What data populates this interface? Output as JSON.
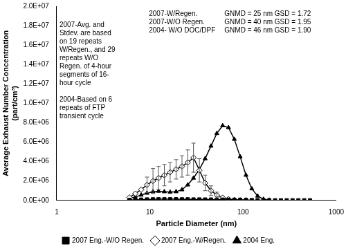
{
  "chart_data": {
    "type": "line",
    "x_label": "Particle Diameter (nm)",
    "y_label": [
      "Average Exhaust Number Concentration",
      "(part/cm³)"
    ],
    "log": "x",
    "grid": false,
    "legend": "bottom",
    "xlim": [
      1,
      1000
    ],
    "xticks": [
      1,
      10,
      100,
      1000
    ],
    "ylim": [
      0,
      20000000
    ],
    "yticks": [
      {
        "value": 0,
        "label": "0.0E+00"
      },
      {
        "value": 2000000,
        "label": "2.0E+06"
      },
      {
        "value": 4000000,
        "label": "4.0E+06"
      },
      {
        "value": 6000000,
        "label": "6.0E+06"
      },
      {
        "value": 8000000,
        "label": "8.0E+06"
      },
      {
        "value": 10000000,
        "label": "1.0E+07"
      },
      {
        "value": 12000000,
        "label": "1.2E+07"
      },
      {
        "value": 14000000,
        "label": "1.4E+07"
      },
      {
        "value": 16000000,
        "label": "1.6E+07"
      },
      {
        "value": 18000000,
        "label": "1.8E+07"
      },
      {
        "value": 20000000,
        "label": "2.0E+07"
      }
    ],
    "x": [
      6.04,
      6.98,
      8.06,
      9.31,
      10.8,
      12.4,
      14.3,
      16.5,
      19.1,
      22.1,
      25.5,
      29.4,
      34.0,
      39.2,
      45.3,
      52.3,
      60.4,
      69.8,
      80.6,
      93.1,
      107.5,
      124.1,
      143.3,
      165.5,
      191.1,
      220.7,
      254.8,
      294.3,
      339.8,
      392.4,
      453.2,
      523.3
    ],
    "series": [
      {
        "name": "2007 Eng.-W/O Regen.",
        "color": "#000000",
        "marker": "square",
        "values": [
          40000,
          60000,
          80000,
          100000,
          110000,
          120000,
          120000,
          120000,
          120000,
          110000,
          110000,
          100000,
          100000,
          90000,
          90000,
          80000,
          80000,
          70000,
          60000,
          50000,
          40000,
          30000,
          20000,
          20000,
          10000,
          10000,
          10000,
          10000,
          10000,
          10000,
          10000,
          10000
        ]
      },
      {
        "name": "2007 Eng.-W/Regen.",
        "color": "#000000",
        "marker": "diamond-open",
        "values": [
          300000,
          700000,
          1100000,
          1600000,
          2000000,
          2300000,
          2600000,
          2900000,
          3200000,
          3500000,
          3900000,
          4400000,
          3100000,
          1800000,
          1000000,
          550000,
          280000,
          130000,
          50000,
          20000,
          10000,
          null,
          null,
          null,
          null,
          null,
          null,
          null,
          null,
          null,
          null,
          null
        ],
        "errors": [
          null,
          null,
          null,
          800000,
          1300000,
          1200000,
          1100000,
          1000000,
          1000000,
          1100000,
          1300000,
          1500000,
          1200000,
          800000,
          500000,
          300000,
          null,
          null,
          null,
          null,
          null,
          null,
          null,
          null,
          null,
          null,
          null,
          null,
          null,
          null,
          null,
          null
        ]
      },
      {
        "name": "2004 Eng.",
        "color": "#000000",
        "marker": "triangle",
        "values": [
          200000,
          350000,
          550000,
          750000,
          900000,
          950000,
          900000,
          850000,
          900000,
          1100000,
          1600000,
          2300000,
          3200000,
          4300000,
          5600000,
          6900000,
          7700000,
          7500000,
          6300000,
          4500000,
          2600000,
          1200000,
          450000,
          120000,
          30000,
          null,
          null,
          null,
          null,
          null,
          null,
          null
        ]
      }
    ],
    "annotations": {
      "stats": [
        {
          "label": "2007-W/Regen.",
          "text": "GNMD = 25 nm GSD = 1.72"
        },
        {
          "label": "2007-W/O Regen.",
          "text": "GNMD = 40 nm GSD = 1.95"
        },
        {
          "label": "2004- W/O DOC/DPF",
          "text": "GNMD = 46 nm GSD = 1.90"
        }
      ],
      "notes": [
        [
          "2007-Avg. and",
          "Stdev. are based",
          "on 19 repeats",
          "W/Regen., and 29",
          "repeats W/O",
          "Regen. of 4-hour",
          "segments of 16-",
          "hour cycle"
        ],
        [
          "2004-Based on 6",
          "repeats of FTP",
          "transient cycle"
        ]
      ]
    }
  }
}
